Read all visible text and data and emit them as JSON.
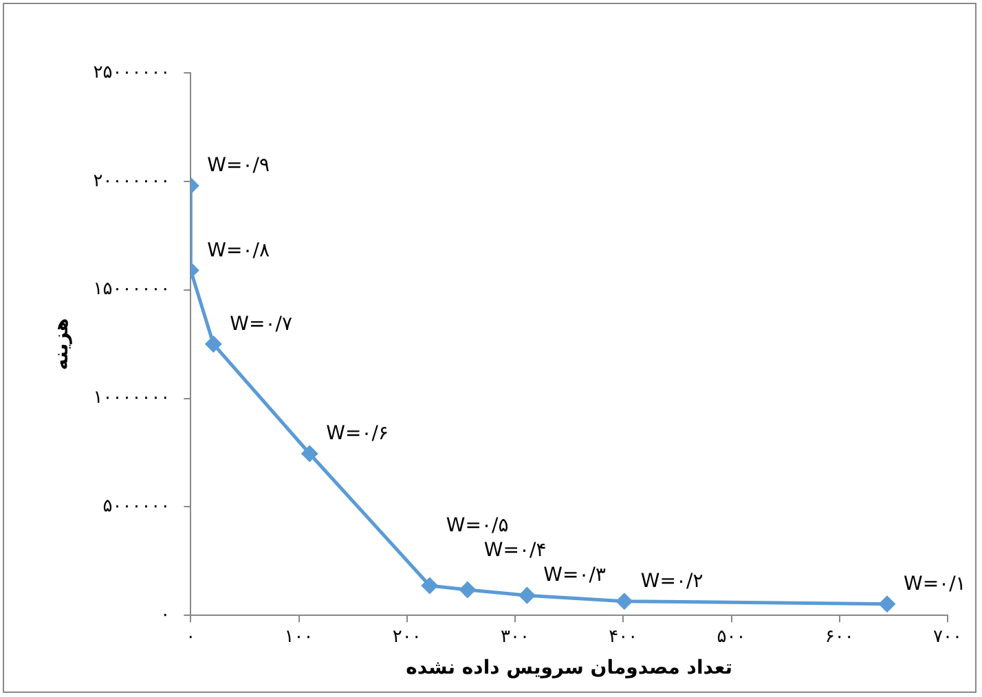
{
  "chart_data": {
    "type": "line",
    "xlabel": "تعداد مصدومان سرویس داده نشده",
    "ylabel": "هزینه",
    "x": [
      0,
      0,
      21,
      110,
      221,
      256,
      311,
      401,
      644
    ],
    "series": [
      {
        "color": "#5b9bd5",
        "values": [
          19800000,
          15900000,
          12500000,
          7450000,
          1370000,
          1180000,
          920000,
          650000,
          520000
        ]
      }
    ],
    "xlim": [
      0,
      700
    ],
    "xticks": [
      {
        "value": 0,
        "label": "۰"
      },
      {
        "value": 100,
        "label": "۱۰۰"
      },
      {
        "value": 200,
        "label": "۲۰۰"
      },
      {
        "value": 300,
        "label": "۳۰۰"
      },
      {
        "value": 400,
        "label": "۴۰۰"
      },
      {
        "value": 500,
        "label": "۵۰۰"
      },
      {
        "value": 600,
        "label": "۶۰۰"
      },
      {
        "value": 700,
        "label": "۷۰۰"
      }
    ],
    "ylim": [
      0,
      25000000
    ],
    "yticks": [
      {
        "value": 0,
        "label": "۰"
      },
      {
        "value": 5000000,
        "label": "۵۰۰۰۰۰۰"
      },
      {
        "value": 10000000,
        "label": "۱۰۰۰۰۰۰۰"
      },
      {
        "value": 15000000,
        "label": "۱۵۰۰۰۰۰۰"
      },
      {
        "value": 20000000,
        "label": "۲۰۰۰۰۰۰۰"
      },
      {
        "value": 25000000,
        "label": "۲۵۰۰۰۰۰۰"
      }
    ],
    "annotations": [
      {
        "text": "W=۰/۹",
        "x": 0,
        "y": 19800000
      },
      {
        "text": "W=۰/۸",
        "x": 0,
        "y": 15900000
      },
      {
        "text": "W=۰/۷",
        "x": 21,
        "y": 12500000
      },
      {
        "text": "W=۰/۶",
        "x": 110,
        "y": 7450000
      },
      {
        "text": "W=۰/۵",
        "x": 221,
        "y": 1370000
      },
      {
        "text": "W=۰/۴",
        "x": 256,
        "y": 1180000
      },
      {
        "text": "W=۰/۳",
        "x": 311,
        "y": 920000
      },
      {
        "text": "W=۰/۲",
        "x": 401,
        "y": 650000
      },
      {
        "text": "W=۰/۱",
        "x": 644,
        "y": 520000
      }
    ],
    "grid": false,
    "legend": false,
    "marker": "diamond",
    "line_style": "solid"
  }
}
